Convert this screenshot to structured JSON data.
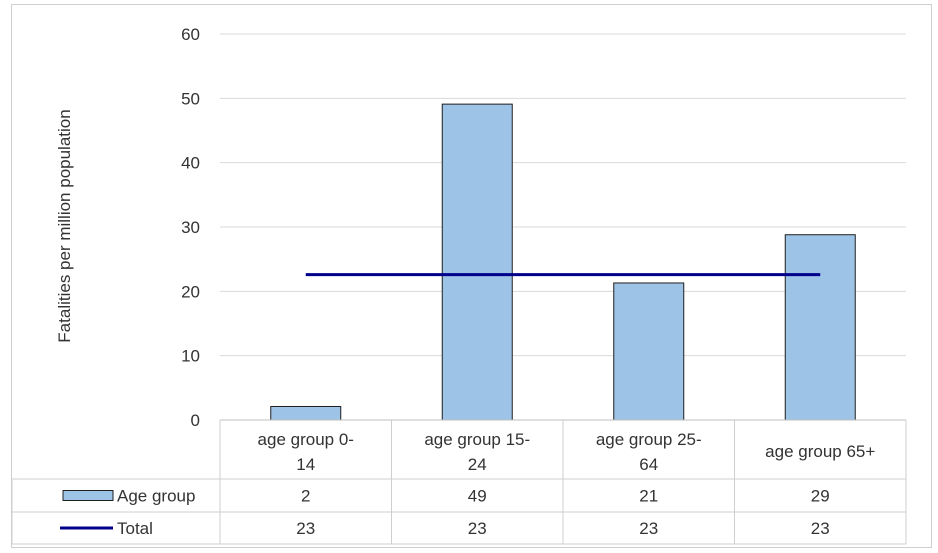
{
  "figure": {
    "title": ""
  },
  "chart_data": {
    "type": "bar",
    "ylabel": "Fatalities per million population",
    "ylim": [
      0,
      60
    ],
    "y_ticks": [
      0,
      10,
      20,
      30,
      40,
      50,
      60
    ],
    "categories": [
      [
        "age group 0-",
        "14"
      ],
      [
        "age group 15-",
        "24"
      ],
      [
        "age group 25-",
        "64"
      ],
      [
        "age group 65+"
      ]
    ],
    "series": [
      {
        "name": "Age group",
        "kind": "bar",
        "color": "#9dc3e6",
        "values": [
          2,
          49,
          21,
          29
        ],
        "plotted_values": [
          2.1,
          49.1,
          21.3,
          28.8
        ]
      },
      {
        "name": "Total",
        "kind": "line",
        "color": "#00008b",
        "values": [
          23,
          23,
          23,
          23
        ],
        "plotted_values": [
          22.6,
          22.6,
          22.6,
          22.6
        ]
      }
    ],
    "grid": true,
    "legend": "data table"
  }
}
